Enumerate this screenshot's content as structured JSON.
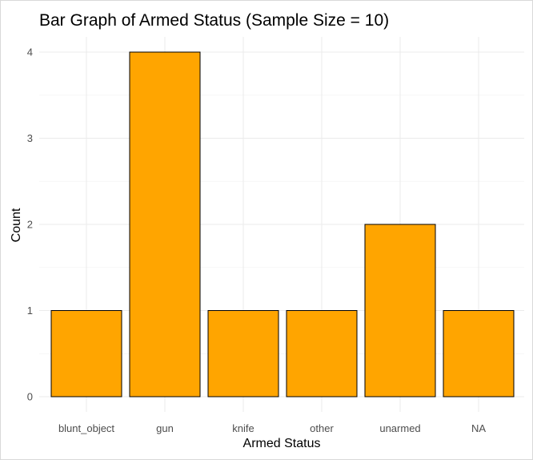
{
  "chart_data": {
    "type": "bar",
    "title": "Bar Graph of Armed Status (Sample Size = 10)",
    "xlabel": "Armed Status",
    "ylabel": "Count",
    "categories": [
      "blunt_object",
      "gun",
      "knife",
      "other",
      "unarmed",
      "NA"
    ],
    "values": [
      1,
      4,
      1,
      1,
      2,
      1
    ],
    "y_ticks": [
      "0",
      "1",
      "2",
      "3",
      "4"
    ],
    "ylim": [
      0,
      4.2
    ],
    "grid": true,
    "legend": "none",
    "bar_color": "#FFA500",
    "bar_outline_color": "#000000"
  }
}
